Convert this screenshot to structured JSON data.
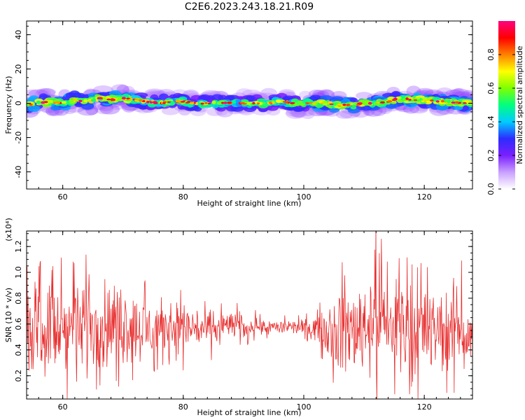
{
  "title": "C2E6.2023.243.18.21.R09",
  "chart_data": [
    {
      "type": "heatmap",
      "xlabel": "Height of straight line (km)",
      "ylabel": "Frequency (Hz)",
      "xlim": [
        54,
        128
      ],
      "ylim": [
        -50,
        48
      ],
      "x_ticks": [
        60,
        80,
        100,
        120
      ],
      "y_ticks": [
        -40,
        -20,
        0,
        20,
        40
      ],
      "colorbar": {
        "label": "Normalized spectral amplitude",
        "range": [
          0,
          1
        ],
        "ticks": [
          0.0,
          0.2,
          0.4,
          0.6,
          0.8
        ],
        "colormap": [
          "#ffffff",
          "#c9a0ff",
          "#7a1fff",
          "#2c2cff",
          "#00ccff",
          "#00ff80",
          "#7fff00",
          "#ffff00",
          "#ff8000",
          "#ff0000",
          "#ff0080"
        ]
      },
      "ridge": {
        "description_x": [
          54,
          56,
          58,
          60,
          62,
          64,
          66,
          68,
          70,
          72,
          74,
          76,
          78,
          80,
          82,
          84,
          86,
          88,
          90,
          92,
          94,
          96,
          98,
          100,
          102,
          104,
          106,
          108,
          110,
          112,
          114,
          116,
          118,
          120,
          122,
          124,
          126,
          128
        ],
        "frequency_hz": [
          -1,
          0,
          1,
          0,
          2,
          1,
          3,
          2,
          3,
          2,
          1,
          0,
          1,
          1,
          0,
          0,
          0,
          0,
          0,
          0,
          0,
          1,
          0,
          0,
          0,
          0,
          -1,
          -1,
          0,
          0,
          1,
          3,
          2,
          2,
          1,
          1,
          0,
          0
        ]
      }
    },
    {
      "type": "line",
      "xlabel": "Height of straight line (km)",
      "ylabel": "SNR (10 * v/v)",
      "y_multiplier": "(x10⁴)",
      "xlim": [
        54,
        128
      ],
      "ylim": [
        0.02,
        1.32
      ],
      "x_ticks": [
        60,
        80,
        100,
        120
      ],
      "y_ticks": [
        0.2,
        0.4,
        0.6,
        0.8,
        1.0,
        1.2
      ],
      "color": "#e83030",
      "envelope": {
        "x": [
          54,
          56,
          58,
          60,
          62,
          64,
          66,
          68,
          70,
          72,
          74,
          76,
          78,
          80,
          82,
          84,
          86,
          88,
          90,
          92,
          94,
          96,
          98,
          100,
          102,
          104,
          106,
          108,
          110,
          112,
          114,
          116,
          118,
          120,
          122,
          124,
          126,
          128
        ],
        "low": [
          0.2,
          0.1,
          0.1,
          0.1,
          0.1,
          0.1,
          0.15,
          0.2,
          0.2,
          0.25,
          0.25,
          0.3,
          0.3,
          0.3,
          0.35,
          0.35,
          0.4,
          0.45,
          0.45,
          0.5,
          0.5,
          0.5,
          0.5,
          0.5,
          0.45,
          0.3,
          0.1,
          0.1,
          0.1,
          0.1,
          0.1,
          0.1,
          0.15,
          0.1,
          0.15,
          0.15,
          0.15,
          0.2
        ],
        "high": [
          0.95,
          1.0,
          1.0,
          1.0,
          1.05,
          1.2,
          1.0,
          1.0,
          1.0,
          0.9,
          0.85,
          0.85,
          0.85,
          0.85,
          0.8,
          0.75,
          0.75,
          0.75,
          0.7,
          0.7,
          0.65,
          0.65,
          0.65,
          0.65,
          0.7,
          0.85,
          1.0,
          1.0,
          1.1,
          1.25,
          1.05,
          1.05,
          1.0,
          1.0,
          0.95,
          0.95,
          1.05,
          0.7
        ]
      }
    }
  ]
}
